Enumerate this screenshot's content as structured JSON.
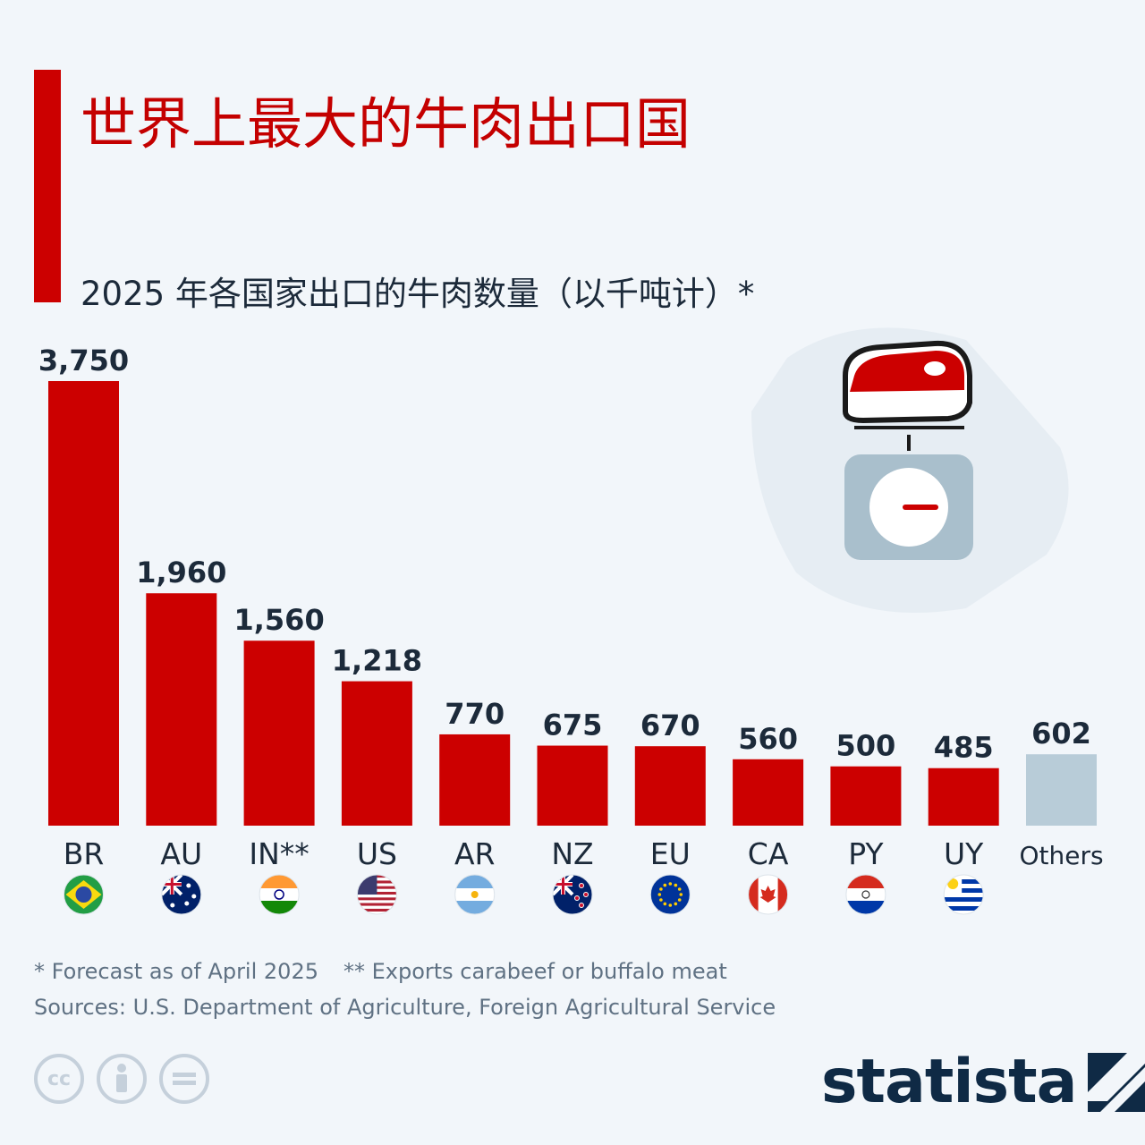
{
  "header": {
    "title": "世界上最大的牛肉出口国",
    "subtitle": "2025 年各国家出口的牛肉数量（以千吨计）*"
  },
  "chart_data": {
    "type": "bar",
    "categories": [
      "BR",
      "AU",
      "IN**",
      "US",
      "AR",
      "NZ",
      "EU",
      "CA",
      "PY",
      "UY",
      "Others"
    ],
    "values": [
      3750,
      1960,
      1560,
      1218,
      770,
      675,
      670,
      560,
      500,
      485,
      602
    ],
    "value_labels": [
      "3,750",
      "1,960",
      "1,560",
      "1,218",
      "770",
      "675",
      "670",
      "560",
      "500",
      "485",
      "602"
    ],
    "flags": [
      "brazil-flag",
      "australia-flag",
      "india-flag",
      "usa-flag",
      "argentina-flag",
      "new-zealand-flag",
      "eu-flag",
      "canada-flag",
      "paraguay-flag",
      "uruguay-flag",
      null
    ],
    "bar_colors": [
      "#cc0000",
      "#cc0000",
      "#cc0000",
      "#cc0000",
      "#cc0000",
      "#cc0000",
      "#cc0000",
      "#cc0000",
      "#cc0000",
      "#cc0000",
      "#b8ccd8"
    ],
    "ylim": [
      0,
      3750
    ],
    "grid": false,
    "legend": "none",
    "title": "世界上最大的牛肉出口国",
    "ylabel": "",
    "xlabel": ""
  },
  "footer": {
    "note1": "* Forecast as of April 2025",
    "note2": "** Exports carabeef or buffalo meat",
    "source": "Sources: U.S. Department of Agriculture, Foreign Agricultural Service",
    "brand": "statista",
    "license_icons": [
      "cc-icon",
      "by-icon",
      "nd-icon"
    ]
  },
  "colors": {
    "accent": "#cc0000",
    "others": "#b8ccd8",
    "text": "#1c2a3a",
    "brand": "#0f2a45"
  },
  "illustration": "beef-scale-icon"
}
